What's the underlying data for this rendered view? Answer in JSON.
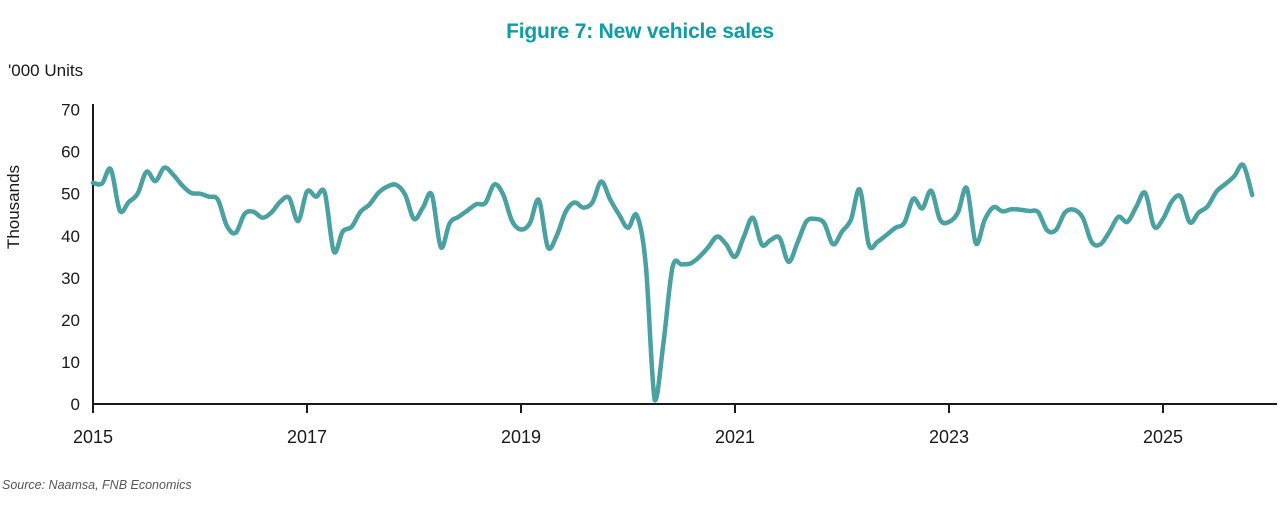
{
  "header": {
    "title": "Figure 7: New vehicle sales"
  },
  "axes": {
    "y_units_label": "'000 Units",
    "y_axis_title": "Thousands",
    "y_ticks": [
      0,
      10,
      20,
      30,
      40,
      50,
      60,
      70
    ],
    "x_ticks": [
      2015,
      2017,
      2019,
      2021,
      2023,
      2025
    ]
  },
  "source": {
    "text": "Source: Naamsa, FNB Economics"
  },
  "colors": {
    "line": "#4AA1A2",
    "title": "#0B9DA8",
    "axis": "#1a1a1a",
    "source_text": "#575756"
  },
  "chart_data": {
    "type": "line",
    "title": "Figure 7: New vehicle sales",
    "xlabel": "",
    "ylabel": "Thousands ('000 Units)",
    "ylim": [
      0,
      70
    ],
    "grid": false,
    "legend_position": "none",
    "frequency": "monthly",
    "x_start": "2015-01",
    "x_end": "2025-11",
    "series": [
      {
        "name": "New vehicle sales ('000 units)",
        "values": [
          52.6,
          52.4,
          55.8,
          46.0,
          48.0,
          50.0,
          55.2,
          53.0,
          56.2,
          54.5,
          52.0,
          50.2,
          50.0,
          49.3,
          48.6,
          42.4,
          40.7,
          45.2,
          45.7,
          44.3,
          45.5,
          48.1,
          49.0,
          43.5,
          50.5,
          49.3,
          50.2,
          36.3,
          41.0,
          42.1,
          45.7,
          47.4,
          50.2,
          51.7,
          52.1,
          49.8,
          44.0,
          46.7,
          49.8,
          37.3,
          43.0,
          44.5,
          46.0,
          47.5,
          47.8,
          52.2,
          49.8,
          43.5,
          41.5,
          43.0,
          48.5,
          37.3,
          40.0,
          45.7,
          47.9,
          46.7,
          47.9,
          52.9,
          48.6,
          45.0,
          41.9,
          44.8,
          33.0,
          0.9,
          15.0,
          32.6,
          33.2,
          33.4,
          35.0,
          37.3,
          39.8,
          38.0,
          35.0,
          39.8,
          44.3,
          37.9,
          39.0,
          39.5,
          33.8,
          38.3,
          43.4,
          44.0,
          43.0,
          38.0,
          41.0,
          43.8,
          51.0,
          37.9,
          38.6,
          40.2,
          41.9,
          43.1,
          48.8,
          46.5,
          50.7,
          43.8,
          43.3,
          45.5,
          51.3,
          38.2,
          43.8,
          46.8,
          45.8,
          46.3,
          46.2,
          45.9,
          45.6,
          41.3,
          41.4,
          45.5,
          46.2,
          44.3,
          38.5,
          38.0,
          41.0,
          44.5,
          43.3,
          46.9,
          50.2,
          42.2,
          44.0,
          48.2,
          49.3,
          43.2,
          45.5,
          47.0,
          50.5,
          52.3,
          54.2,
          56.8,
          49.7
        ]
      }
    ]
  }
}
